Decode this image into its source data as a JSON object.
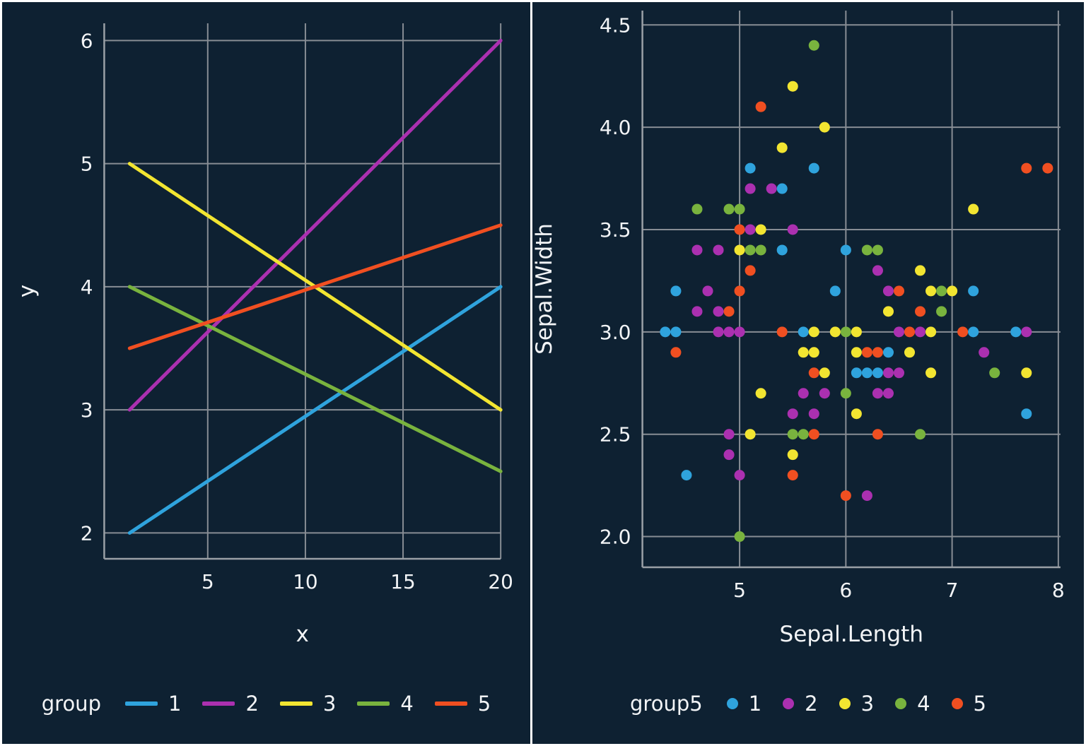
{
  "figure": {
    "background": "#0e2132",
    "panel_border_color": "#ffffff",
    "grid_color": "#878d94",
    "spine_color": "#9aa0a6",
    "text_color": "#f2f4f6"
  },
  "palette": {
    "1": "#2fa3dd",
    "2": "#ab30b0",
    "3": "#f2e531",
    "4": "#79b33e",
    "5": "#f04f21"
  },
  "chart_data": [
    {
      "type": "line",
      "title": "",
      "xlabel": "x",
      "ylabel": "y",
      "xlim": [
        -0.3,
        20
      ],
      "ylim": [
        1.79,
        6.14
      ],
      "xticks": {
        "values": [
          5,
          10,
          15,
          20
        ],
        "labels": [
          "5",
          "10",
          "15",
          "20"
        ]
      },
      "yticks": {
        "values": [
          2,
          3,
          4,
          5,
          6
        ],
        "labels": [
          "2",
          "3",
          "4",
          "5",
          "6"
        ]
      },
      "grid": true,
      "legend_title": "group",
      "legend_position": "bottom",
      "legend": [
        {
          "label": "1",
          "color_key": "1"
        },
        {
          "label": "2",
          "color_key": "2"
        },
        {
          "label": "3",
          "color_key": "3"
        },
        {
          "label": "4",
          "color_key": "4"
        },
        {
          "label": "5",
          "color_key": "5"
        }
      ],
      "series": [
        {
          "name": "1",
          "color_key": "1",
          "x": [
            1,
            20
          ],
          "y": [
            2.0,
            4.0
          ]
        },
        {
          "name": "2",
          "color_key": "2",
          "x": [
            1,
            20
          ],
          "y": [
            3.0,
            6.0
          ]
        },
        {
          "name": "3",
          "color_key": "3",
          "x": [
            1,
            20
          ],
          "y": [
            5.0,
            3.0
          ]
        },
        {
          "name": "4",
          "color_key": "4",
          "x": [
            1,
            20
          ],
          "y": [
            4.0,
            2.5
          ]
        },
        {
          "name": "5",
          "color_key": "5",
          "x": [
            1,
            20
          ],
          "y": [
            3.5,
            4.5
          ]
        }
      ]
    },
    {
      "type": "scatter",
      "title": "",
      "xlabel": "Sepal.Length",
      "ylabel": "Sepal.Width",
      "xlim": [
        4.085,
        8.02
      ],
      "ylim": [
        1.85,
        4.57
      ],
      "xticks": {
        "values": [
          5,
          6,
          7,
          8
        ],
        "labels": [
          "5",
          "6",
          "7",
          "8"
        ]
      },
      "yticks": {
        "values": [
          2.0,
          2.5,
          3.0,
          3.5,
          4.0,
          4.5
        ],
        "labels": [
          "2.0",
          "2.5",
          "3.0",
          "3.5",
          "4.0",
          "4.5"
        ]
      },
      "grid": true,
      "legend_title": "group5",
      "legend_position": "bottom",
      "legend": [
        {
          "label": "1",
          "color_key": "1"
        },
        {
          "label": "2",
          "color_key": "2"
        },
        {
          "label": "3",
          "color_key": "3"
        },
        {
          "label": "4",
          "color_key": "4"
        },
        {
          "label": "5",
          "color_key": "5"
        }
      ],
      "points": [
        [
          5.7,
          4.4,
          4
        ],
        [
          5.5,
          4.2,
          3
        ],
        [
          5.2,
          4.1,
          5
        ],
        [
          5.8,
          4.0,
          3
        ],
        [
          5.4,
          3.9,
          3
        ],
        [
          5.1,
          3.8,
          1
        ],
        [
          5.7,
          3.8,
          1
        ],
        [
          7.7,
          3.8,
          5
        ],
        [
          7.9,
          3.8,
          5
        ],
        [
          5.1,
          3.7,
          2
        ],
        [
          5.3,
          3.7,
          2
        ],
        [
          5.4,
          3.7,
          1
        ],
        [
          4.6,
          3.6,
          4
        ],
        [
          4.9,
          3.6,
          4
        ],
        [
          5.0,
          3.6,
          4
        ],
        [
          7.2,
          3.6,
          3
        ],
        [
          5.0,
          3.5,
          5
        ],
        [
          5.1,
          3.5,
          2
        ],
        [
          5.2,
          3.5,
          3
        ],
        [
          5.5,
          3.5,
          2
        ],
        [
          4.6,
          3.4,
          2
        ],
        [
          4.8,
          3.4,
          2
        ],
        [
          5.0,
          3.4,
          3
        ],
        [
          5.1,
          3.4,
          4
        ],
        [
          5.2,
          3.4,
          4
        ],
        [
          5.4,
          3.4,
          1
        ],
        [
          6.0,
          3.4,
          1
        ],
        [
          6.2,
          3.4,
          4
        ],
        [
          6.3,
          3.4,
          4
        ],
        [
          5.1,
          3.3,
          5
        ],
        [
          6.3,
          3.3,
          2
        ],
        [
          6.7,
          3.3,
          3
        ],
        [
          4.4,
          3.2,
          1
        ],
        [
          4.7,
          3.2,
          2
        ],
        [
          5.0,
          3.2,
          5
        ],
        [
          5.9,
          3.2,
          1
        ],
        [
          6.4,
          3.2,
          2
        ],
        [
          6.5,
          3.2,
          5
        ],
        [
          6.8,
          3.2,
          3
        ],
        [
          6.9,
          3.2,
          4
        ],
        [
          7.0,
          3.2,
          3
        ],
        [
          7.2,
          3.2,
          1
        ],
        [
          4.6,
          3.1,
          2
        ],
        [
          4.8,
          3.1,
          2
        ],
        [
          4.9,
          3.1,
          5
        ],
        [
          6.4,
          3.1,
          3
        ],
        [
          6.7,
          3.1,
          5
        ],
        [
          6.9,
          3.1,
          4
        ],
        [
          4.3,
          3.0,
          1
        ],
        [
          4.4,
          3.0,
          1
        ],
        [
          4.8,
          3.0,
          2
        ],
        [
          4.9,
          3.0,
          2
        ],
        [
          5.0,
          3.0,
          2
        ],
        [
          5.4,
          3.0,
          5
        ],
        [
          5.6,
          3.0,
          1
        ],
        [
          5.7,
          3.0,
          3
        ],
        [
          5.9,
          3.0,
          3
        ],
        [
          6.0,
          3.0,
          4
        ],
        [
          6.1,
          3.0,
          3
        ],
        [
          6.5,
          3.0,
          2
        ],
        [
          6.6,
          3.0,
          5
        ],
        [
          6.7,
          3.0,
          2
        ],
        [
          6.8,
          3.0,
          3
        ],
        [
          7.1,
          3.0,
          5
        ],
        [
          7.2,
          3.0,
          1
        ],
        [
          7.6,
          3.0,
          1
        ],
        [
          7.7,
          3.0,
          2
        ],
        [
          4.4,
          2.9,
          5
        ],
        [
          5.6,
          2.9,
          3
        ],
        [
          5.7,
          2.9,
          3
        ],
        [
          6.1,
          2.9,
          3
        ],
        [
          6.2,
          2.9,
          5
        ],
        [
          6.3,
          2.9,
          5
        ],
        [
          6.4,
          2.9,
          1
        ],
        [
          6.6,
          2.9,
          3
        ],
        [
          7.3,
          2.9,
          2
        ],
        [
          5.7,
          2.8,
          5
        ],
        [
          5.8,
          2.8,
          3
        ],
        [
          6.1,
          2.8,
          1
        ],
        [
          6.2,
          2.8,
          1
        ],
        [
          6.3,
          2.8,
          1
        ],
        [
          6.4,
          2.8,
          2
        ],
        [
          6.5,
          2.8,
          2
        ],
        [
          6.8,
          2.8,
          3
        ],
        [
          7.4,
          2.8,
          4
        ],
        [
          7.7,
          2.8,
          3
        ],
        [
          5.2,
          2.7,
          3
        ],
        [
          5.6,
          2.7,
          2
        ],
        [
          5.8,
          2.7,
          2
        ],
        [
          6.0,
          2.7,
          4
        ],
        [
          6.3,
          2.7,
          2
        ],
        [
          6.4,
          2.7,
          2
        ],
        [
          5.5,
          2.6,
          2
        ],
        [
          5.7,
          2.6,
          2
        ],
        [
          6.1,
          2.6,
          3
        ],
        [
          7.7,
          2.6,
          1
        ],
        [
          4.9,
          2.5,
          2
        ],
        [
          5.1,
          2.5,
          3
        ],
        [
          5.5,
          2.5,
          4
        ],
        [
          5.6,
          2.5,
          4
        ],
        [
          5.7,
          2.5,
          5
        ],
        [
          6.3,
          2.5,
          5
        ],
        [
          6.7,
          2.5,
          4
        ],
        [
          4.9,
          2.4,
          2
        ],
        [
          5.5,
          2.4,
          3
        ],
        [
          4.5,
          2.3,
          1
        ],
        [
          5.0,
          2.3,
          2
        ],
        [
          5.5,
          2.3,
          5
        ],
        [
          6.0,
          2.2,
          5
        ],
        [
          6.2,
          2.2,
          2
        ],
        [
          5.0,
          2.0,
          4
        ]
      ]
    }
  ]
}
